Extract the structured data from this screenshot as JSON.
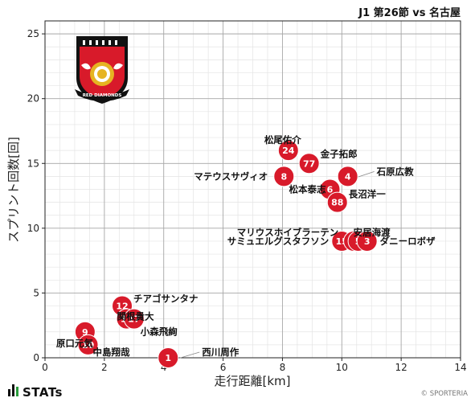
{
  "chart_data": {
    "type": "scatter",
    "title": "J1 第26節 vs 名古屋",
    "xlabel": "走行距離[km]",
    "ylabel": "スプリント回数[回]",
    "xlim": [
      0,
      14
    ],
    "ylim": [
      0,
      26
    ],
    "xticks": [
      0,
      2,
      4,
      6,
      8,
      10,
      12,
      14
    ],
    "yticks": [
      0,
      5,
      10,
      15,
      20,
      25
    ],
    "grid": true,
    "marker_color": "#d81a2a",
    "points": [
      {
        "number": "24",
        "name": "松尾佑介",
        "x": 8.2,
        "y": 16
      },
      {
        "number": "77",
        "name": "金子拓郎",
        "x": 8.9,
        "y": 15
      },
      {
        "number": "8",
        "name": "マテウスサヴィオ",
        "x": 8.05,
        "y": 14
      },
      {
        "number": "4",
        "name": "石原広教",
        "x": 10.2,
        "y": 14
      },
      {
        "number": "6",
        "name": "松本泰志",
        "x": 9.6,
        "y": 13
      },
      {
        "number": "88",
        "name": "長沼洋一",
        "x": 9.85,
        "y": 12
      },
      {
        "number": "15",
        "name": "マリウスホイブラーテン",
        "x": 10.0,
        "y": 9
      },
      {
        "number": "2",
        "name": "",
        "x": 10.4,
        "y": 9
      },
      {
        "number": "5",
        "name": "安居海渡",
        "x": 10.55,
        "y": 9
      },
      {
        "number": "3",
        "name": "ダニーロボザ",
        "x": 10.85,
        "y": 9
      },
      {
        "number": "",
        "name": "サミュエルグスタフソン",
        "x": 10.0,
        "y": 9
      },
      {
        "number": "12",
        "name": "チアゴサンタナ",
        "x": 2.6,
        "y": 4
      },
      {
        "number": "14",
        "name": "関根貴大",
        "x": 2.75,
        "y": 3
      },
      {
        "number": "17",
        "name": "小森飛絢",
        "x": 3.0,
        "y": 3
      },
      {
        "number": "9",
        "name": "原口元気",
        "x": 1.35,
        "y": 2
      },
      {
        "number": "10",
        "name": "中島翔哉",
        "x": 1.45,
        "y": 1
      },
      {
        "number": "1",
        "name": "西川周作",
        "x": 4.15,
        "y": 0
      }
    ]
  },
  "footer": {
    "logo_text": "STATs",
    "credit": "© SPORTERIA"
  },
  "crest": {
    "text": "RED DIAMONDS",
    "club": "URAWA",
    "colors": {
      "red": "#d81a2a",
      "black": "#111111",
      "gold": "#e6b422",
      "white": "#ffffff"
    }
  }
}
